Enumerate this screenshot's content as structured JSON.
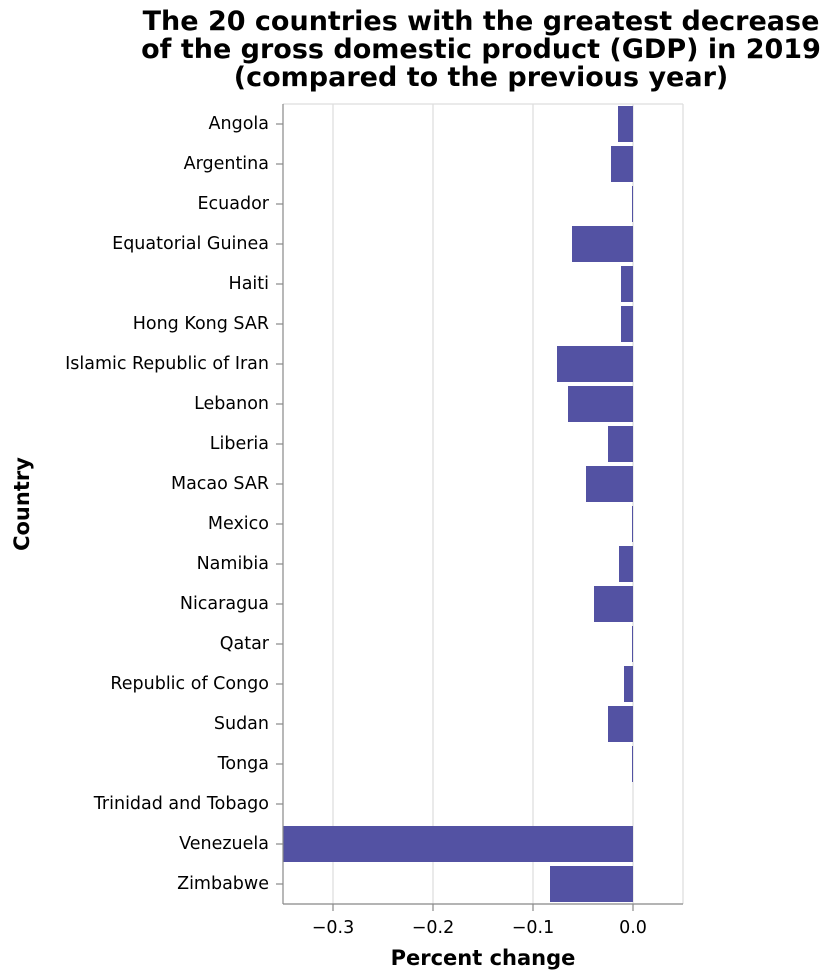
{
  "chart_data": {
    "type": "bar",
    "orientation": "horizontal",
    "title": [
      "The 20 countries with the greatest decrease",
      "of the gross domestic product (GDP) in 2019",
      "(compared to the previous year)"
    ],
    "xlabel": "Percent change",
    "ylabel": "Country",
    "xlim": [
      -0.35,
      0.05
    ],
    "xticks": [
      -0.3,
      -0.2,
      -0.1,
      0.0
    ],
    "xtick_labels": [
      "−0.3",
      "−0.2",
      "−0.1",
      "0.0"
    ],
    "grid": true,
    "bar_color": "#5352a3",
    "categories": [
      "Angola",
      "Argentina",
      "Ecuador",
      "Equatorial Guinea",
      "Haiti",
      "Hong Kong SAR",
      "Islamic Republic of Iran",
      "Lebanon",
      "Liberia",
      "Macao SAR",
      "Mexico",
      "Namibia",
      "Nicaragua",
      "Qatar",
      "Republic of Congo",
      "Sudan",
      "Tonga",
      "Trinidad and Tobago",
      "Venezuela",
      "Zimbabwe"
    ],
    "values": [
      -0.015,
      -0.022,
      -0.001,
      -0.061,
      -0.012,
      -0.012,
      -0.076,
      -0.065,
      -0.025,
      -0.047,
      -0.001,
      -0.014,
      -0.039,
      -0.001,
      -0.009,
      -0.025,
      -0.001,
      0.0,
      -0.35,
      -0.083
    ]
  }
}
